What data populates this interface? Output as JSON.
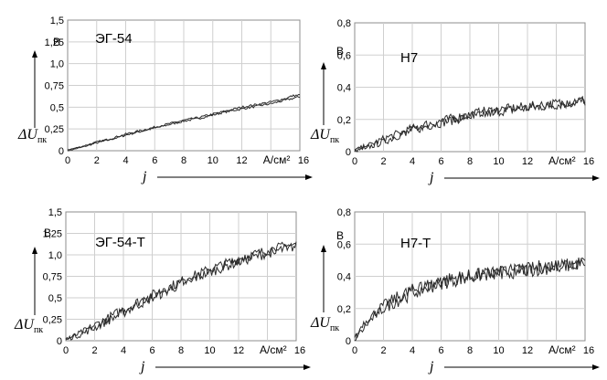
{
  "chart_data": [
    {
      "type": "line",
      "label": "ЭГ-54",
      "y_unit": "В",
      "x_unit": "А/см²",
      "x_name": "j",
      "y_name": "ΔU",
      "y_sub": "пк",
      "xlim": [
        0,
        16
      ],
      "ylim": [
        0,
        1.5
      ],
      "x_ticks": [
        "0",
        "2",
        "4",
        "6",
        "8",
        "10",
        "12",
        "16"
      ],
      "y_ticks": [
        "0",
        "0,25",
        "0,5",
        "0,75",
        "1,0",
        "1,25",
        "1,5"
      ],
      "grid": true,
      "series": [
        {
          "x": [
            0,
            1,
            2,
            3,
            4,
            5,
            6,
            7,
            8,
            9,
            10,
            11,
            12,
            13,
            14,
            15,
            15.5,
            16
          ],
          "y": [
            0,
            0.04,
            0.09,
            0.13,
            0.18,
            0.22,
            0.26,
            0.3,
            0.34,
            0.37,
            0.41,
            0.45,
            0.48,
            0.51,
            0.54,
            0.58,
            0.6,
            0.62
          ]
        },
        {
          "x": [
            0,
            1,
            2,
            3,
            4,
            5,
            6,
            7,
            8,
            9,
            10,
            11,
            12,
            13,
            14,
            15,
            15.5,
            16
          ],
          "y": [
            0.01,
            0.05,
            0.1,
            0.14,
            0.19,
            0.23,
            0.27,
            0.31,
            0.35,
            0.38,
            0.42,
            0.46,
            0.5,
            0.53,
            0.56,
            0.6,
            0.63,
            0.64
          ]
        }
      ]
    },
    {
      "type": "line",
      "label": "Н7",
      "y_unit": "В",
      "x_unit": "А/см²",
      "x_name": "j",
      "y_name": "ΔU",
      "y_sub": "пк",
      "xlim": [
        0,
        16
      ],
      "ylim": [
        0,
        0.8
      ],
      "x_ticks": [
        "0",
        "2",
        "4",
        "6",
        "8",
        "10",
        "12",
        "16"
      ],
      "y_ticks": [
        "0",
        "0,2",
        "0,4",
        "0,6",
        "0,8"
      ],
      "grid": true,
      "series": [
        {
          "x": [
            0,
            1,
            2,
            3,
            4,
            5,
            6,
            7,
            8,
            9,
            10,
            11,
            12,
            13,
            14,
            15,
            15.5,
            16
          ],
          "y": [
            0.0,
            0.03,
            0.06,
            0.1,
            0.13,
            0.16,
            0.18,
            0.2,
            0.22,
            0.23,
            0.25,
            0.26,
            0.27,
            0.28,
            0.29,
            0.3,
            0.31,
            0.31
          ]
        },
        {
          "x": [
            0,
            1,
            2,
            3,
            4,
            5,
            6,
            7,
            8,
            9,
            10,
            11,
            12,
            13,
            14,
            15,
            15.5,
            16
          ],
          "y": [
            0.01,
            0.04,
            0.08,
            0.11,
            0.14,
            0.17,
            0.19,
            0.21,
            0.23,
            0.25,
            0.26,
            0.27,
            0.28,
            0.29,
            0.3,
            0.31,
            0.32,
            0.32
          ]
        }
      ]
    },
    {
      "type": "line",
      "label": "ЭГ-54-Т",
      "y_unit": "В",
      "x_unit": "А/см²",
      "x_name": "j",
      "y_name": "ΔU",
      "y_sub": "пк",
      "xlim": [
        0,
        16
      ],
      "ylim": [
        0,
        1.5
      ],
      "x_ticks": [
        "0",
        "2",
        "4",
        "6",
        "8",
        "10",
        "12",
        "16"
      ],
      "y_ticks": [
        "0",
        "0,25",
        "0,5",
        "0,75",
        "1,0",
        "1,25",
        "1,5"
      ],
      "grid": true,
      "series": [
        {
          "x": [
            0,
            1,
            2,
            3,
            4,
            5,
            6,
            7,
            8,
            9,
            10,
            11,
            12,
            13,
            14,
            15,
            15.5,
            16
          ],
          "y": [
            0.01,
            0.09,
            0.18,
            0.27,
            0.36,
            0.45,
            0.53,
            0.61,
            0.69,
            0.76,
            0.83,
            0.89,
            0.95,
            1.0,
            1.05,
            1.09,
            1.11,
            1.12
          ]
        },
        {
          "x": [
            0,
            1,
            2,
            3,
            4,
            5,
            6,
            7,
            8,
            9,
            10,
            11,
            12,
            13,
            14,
            15,
            15.5,
            16
          ],
          "y": [
            0.02,
            0.07,
            0.15,
            0.24,
            0.33,
            0.42,
            0.5,
            0.58,
            0.66,
            0.73,
            0.8,
            0.86,
            0.92,
            0.97,
            1.02,
            1.06,
            1.08,
            1.1
          ]
        }
      ]
    },
    {
      "type": "line",
      "label": "Н7-Т",
      "y_unit": "В",
      "x_unit": "А/см²",
      "x_name": "j",
      "y_name": "ΔU",
      "y_sub": "пк",
      "xlim": [
        0,
        16
      ],
      "ylim": [
        0,
        0.8
      ],
      "x_ticks": [
        "0",
        "2",
        "4",
        "6",
        "8",
        "10",
        "12",
        "16"
      ],
      "y_ticks": [
        "0",
        "0,2",
        "0,4",
        "0,6",
        "0,8"
      ],
      "grid": true,
      "series": [
        {
          "x": [
            0,
            0.5,
            1,
            2,
            3,
            4,
            5,
            6,
            7,
            8,
            9,
            10,
            11,
            12,
            13,
            14,
            15,
            15.5,
            16
          ],
          "y": [
            0.0,
            0.1,
            0.14,
            0.22,
            0.27,
            0.31,
            0.34,
            0.37,
            0.39,
            0.4,
            0.41,
            0.42,
            0.43,
            0.44,
            0.45,
            0.46,
            0.47,
            0.48,
            0.49
          ]
        },
        {
          "x": [
            0,
            0.5,
            1,
            2,
            3,
            4,
            5,
            6,
            7,
            8,
            9,
            10,
            11,
            12,
            13,
            14,
            15,
            15.5,
            16
          ],
          "y": [
            0.02,
            0.06,
            0.12,
            0.2,
            0.25,
            0.3,
            0.33,
            0.36,
            0.38,
            0.4,
            0.41,
            0.42,
            0.43,
            0.44,
            0.46,
            0.47,
            0.48,
            0.49,
            0.5
          ]
        }
      ]
    }
  ]
}
